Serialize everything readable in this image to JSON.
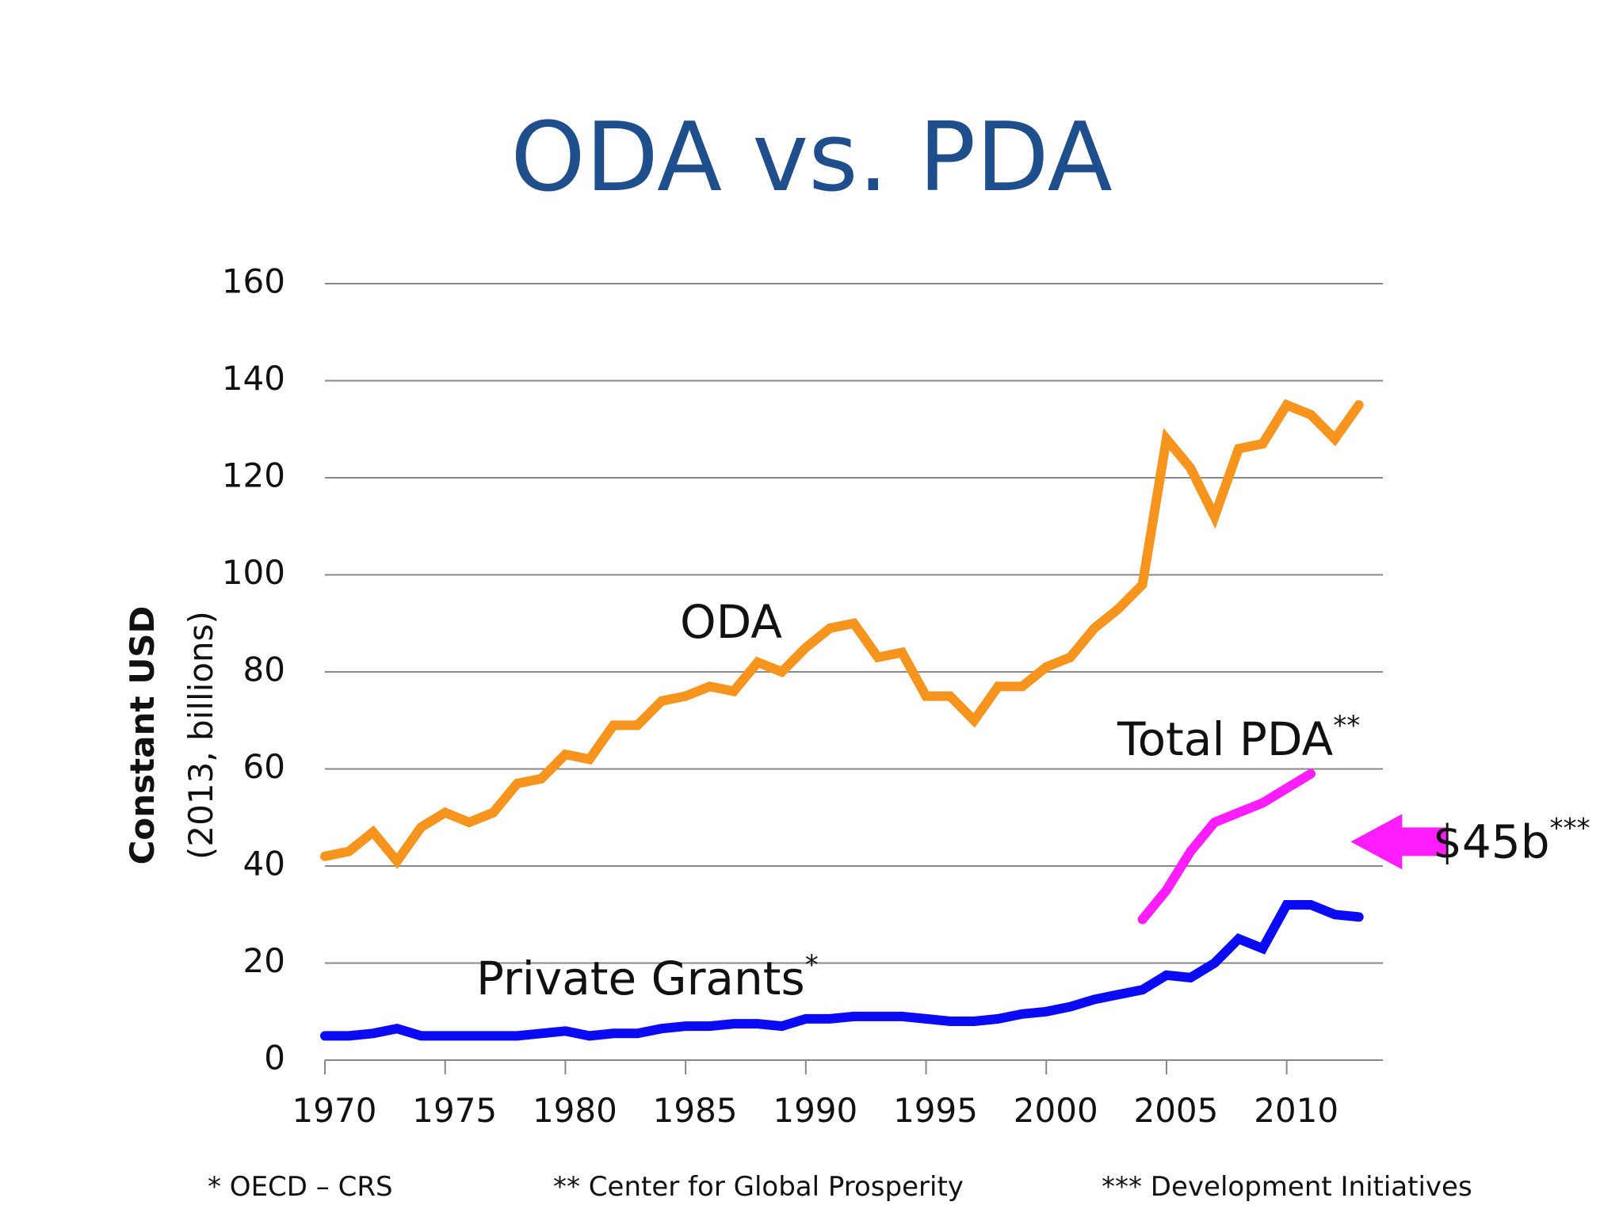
{
  "title": "ODA vs. PDA",
  "chart_data": {
    "type": "line",
    "ylabel": "Constant USD",
    "ylabel_sub": "(2013, billions)",
    "xlabel": "",
    "xlim": [
      1970,
      2014
    ],
    "ylim": [
      0,
      160
    ],
    "yticks": [
      0,
      20,
      40,
      60,
      80,
      100,
      120,
      140,
      160
    ],
    "xticks": [
      1970,
      1975,
      1980,
      1985,
      1990,
      1995,
      2000,
      2005,
      2010
    ],
    "grid": true,
    "colors": {
      "oda": "#f7941d",
      "pda": "#ff1cff",
      "grants": "#0a0af5",
      "arrow": "#ff1cff",
      "grid": "#888888"
    },
    "series": [
      {
        "key": "oda",
        "name": "ODA",
        "x": [
          1970,
          1971,
          1972,
          1973,
          1974,
          1975,
          1976,
          1977,
          1978,
          1979,
          1980,
          1981,
          1982,
          1983,
          1984,
          1985,
          1986,
          1987,
          1988,
          1989,
          1990,
          1991,
          1992,
          1993,
          1994,
          1995,
          1996,
          1997,
          1998,
          1999,
          2000,
          2001,
          2002,
          2003,
          2004,
          2005,
          2006,
          2007,
          2008,
          2009,
          2010,
          2011,
          2012,
          2013
        ],
        "values": [
          42,
          43,
          47,
          41,
          48,
          51,
          49,
          51,
          57,
          58,
          63,
          62,
          69,
          69,
          74,
          75,
          77,
          76,
          82,
          80,
          85,
          89,
          90,
          83,
          84,
          75,
          75,
          70,
          77,
          77,
          81,
          83,
          89,
          93,
          98,
          128,
          122,
          112,
          126,
          127,
          135,
          133,
          128,
          135
        ]
      },
      {
        "key": "pda",
        "name": "Total PDA",
        "name_sup": "**",
        "x": [
          2004,
          2005,
          2006,
          2007,
          2008,
          2009,
          2010,
          2011
        ],
        "values": [
          29,
          35,
          43,
          49,
          51,
          53,
          56,
          59
        ]
      },
      {
        "key": "grants",
        "name": "Private Grants",
        "name_sup": "*",
        "x": [
          1970,
          1971,
          1972,
          1973,
          1974,
          1975,
          1976,
          1977,
          1978,
          1979,
          1980,
          1981,
          1982,
          1983,
          1984,
          1985,
          1986,
          1987,
          1988,
          1989,
          1990,
          1991,
          1992,
          1993,
          1994,
          1995,
          1996,
          1997,
          1998,
          1999,
          2000,
          2001,
          2002,
          2003,
          2004,
          2005,
          2006,
          2007,
          2008,
          2009,
          2010,
          2011,
          2012,
          2013
        ],
        "values": [
          5,
          5,
          5.5,
          6.5,
          5,
          5,
          5,
          5,
          5,
          5.5,
          6,
          5,
          5.5,
          5.5,
          6.5,
          7,
          7,
          7.5,
          7.5,
          7,
          8.5,
          8.5,
          9,
          9,
          9,
          8.5,
          8,
          8,
          8.5,
          9.5,
          10,
          11,
          12.5,
          13.5,
          14.5,
          17.5,
          17,
          20,
          25,
          23,
          32,
          32,
          30,
          29.5
        ]
      }
    ],
    "annotation": {
      "text": "$45b",
      "sup": "***",
      "value": 45,
      "arrow_tip_x": 2012
    }
  },
  "footnotes": [
    "*  OECD – CRS",
    "**  Center for Global Prosperity",
    "***  Development Initiatives"
  ]
}
